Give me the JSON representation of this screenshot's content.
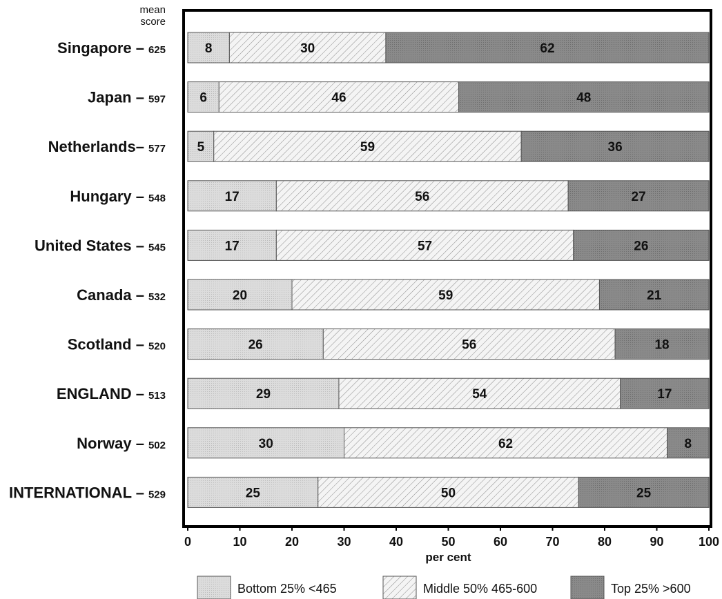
{
  "chart_data": {
    "type": "bar",
    "stacked": true,
    "orientation": "horizontal",
    "mean_score_header": [
      "mean",
      "score"
    ],
    "categories": [
      "Singapore",
      "Japan",
      "Netherlands",
      "Hungary",
      "United States",
      "Canada",
      "Scotland",
      "ENGLAND",
      "Norway",
      "INTERNATIONAL"
    ],
    "category_labels": [
      "Singapore –",
      "Japan –",
      "Netherlands–",
      "Hungary –",
      "United States –",
      "Canada –",
      "Scotland –",
      "ENGLAND –",
      "Norway –",
      "INTERNATIONAL –"
    ],
    "mean_scores": [
      625,
      597,
      577,
      548,
      545,
      532,
      520,
      513,
      502,
      529
    ],
    "series": [
      {
        "name": "Bottom 25% <465",
        "color": "#d9d9d9",
        "values": [
          8,
          6,
          5,
          17,
          17,
          20,
          26,
          29,
          30,
          25
        ]
      },
      {
        "name": "Middle 50% 465-600",
        "color": "#f2f2f2",
        "values": [
          30,
          46,
          59,
          56,
          57,
          59,
          56,
          54,
          62,
          50
        ]
      },
      {
        "name": "Top 25% >600",
        "color": "#8a8a8a",
        "values": [
          62,
          48,
          36,
          27,
          26,
          21,
          18,
          17,
          8,
          25
        ]
      }
    ],
    "xlabel": "per cent",
    "xlim": [
      0,
      100
    ],
    "xticks": [
      0,
      10,
      20,
      30,
      40,
      50,
      60,
      70,
      80,
      90,
      100
    ],
    "legend_position": "bottom"
  }
}
